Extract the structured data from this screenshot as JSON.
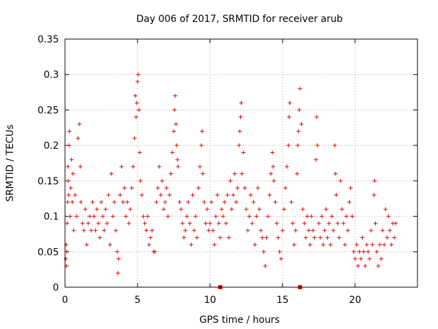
{
  "chart_data": {
    "type": "scatter",
    "title": "Day 006 of 2017, SRMTID for receiver arub",
    "xlabel": "GPS time / hours",
    "ylabel": "SRMTID / TECUs",
    "xlim": [
      0,
      24.3
    ],
    "ylim": [
      0,
      0.35
    ],
    "xticks": [
      0,
      5,
      10,
      15,
      20
    ],
    "xtick_labels": [
      "0",
      "5",
      "10",
      "15",
      "20"
    ],
    "yticks": [
      0,
      0.05,
      0.1,
      0.15,
      0.2,
      0.25,
      0.3,
      0.35
    ],
    "ytick_labels": [
      "0",
      "0.05",
      "0.1",
      "0.15",
      "0.2",
      "0.25",
      "0.3",
      "0.35"
    ],
    "grid": true,
    "marker_color": "#e00000",
    "series": [
      {
        "name": "SRMTID",
        "marker": "plus",
        "points": [
          [
            0.05,
            0.04
          ],
          [
            0.08,
            0.06
          ],
          [
            0.1,
            0.03
          ],
          [
            0.12,
            0.05
          ],
          [
            0.15,
            0.09
          ],
          [
            0.18,
            0.12
          ],
          [
            0.2,
            0.17
          ],
          [
            0.22,
            0.15
          ],
          [
            0.25,
            0.13
          ],
          [
            0.28,
            0.2
          ],
          [
            0.3,
            0.22
          ],
          [
            0.35,
            0.1
          ],
          [
            0.4,
            0.14
          ],
          [
            0.45,
            0.18
          ],
          [
            0.5,
            0.12
          ],
          [
            0.55,
            0.16
          ],
          [
            0.6,
            0.08
          ],
          [
            0.7,
            0.13
          ],
          [
            0.8,
            0.1
          ],
          [
            0.9,
            0.21
          ],
          [
            1.0,
            0.23
          ],
          [
            1.05,
            0.17
          ],
          [
            1.1,
            0.12
          ],
          [
            1.2,
            0.09
          ],
          [
            1.3,
            0.08
          ],
          [
            1.4,
            0.11
          ],
          [
            1.5,
            0.06
          ],
          [
            1.6,
            0.09
          ],
          [
            1.7,
            0.1
          ],
          [
            1.8,
            0.08
          ],
          [
            1.9,
            0.12
          ],
          [
            2.0,
            0.1
          ],
          [
            2.1,
            0.08
          ],
          [
            2.2,
            0.11
          ],
          [
            2.3,
            0.09
          ],
          [
            2.4,
            0.07
          ],
          [
            2.5,
            0.12
          ],
          [
            2.6,
            0.1
          ],
          [
            2.7,
            0.08
          ],
          [
            2.8,
            0.11
          ],
          [
            2.9,
            0.09
          ],
          [
            3.0,
            0.13
          ],
          [
            3.1,
            0.06
          ],
          [
            3.2,
            0.16
          ],
          [
            3.3,
            0.1
          ],
          [
            3.4,
            0.12
          ],
          [
            3.5,
            0.08
          ],
          [
            3.6,
            0.05
          ],
          [
            3.65,
            0.02
          ],
          [
            3.7,
            0.04
          ],
          [
            3.8,
            0.13
          ],
          [
            3.9,
            0.17
          ],
          [
            4.0,
            0.12
          ],
          [
            4.1,
            0.14
          ],
          [
            4.2,
            0.1
          ],
          [
            4.3,
            0.12
          ],
          [
            4.4,
            0.09
          ],
          [
            4.5,
            0.11
          ],
          [
            4.6,
            0.14
          ],
          [
            4.7,
            0.17
          ],
          [
            4.8,
            0.21
          ],
          [
            4.85,
            0.27
          ],
          [
            4.9,
            0.24
          ],
          [
            4.95,
            0.26
          ],
          [
            5.0,
            0.29
          ],
          [
            5.05,
            0.3
          ],
          [
            5.1,
            0.25
          ],
          [
            5.15,
            0.19
          ],
          [
            5.2,
            0.15
          ],
          [
            5.3,
            0.13
          ],
          [
            5.4,
            0.1
          ],
          [
            5.5,
            0.09
          ],
          [
            5.6,
            0.08
          ],
          [
            5.7,
            0.1
          ],
          [
            5.8,
            0.06
          ],
          [
            5.9,
            0.07
          ],
          [
            6.0,
            0.08
          ],
          [
            6.1,
            0.05
          ],
          [
            6.2,
            0.05
          ],
          [
            6.3,
            0.12
          ],
          [
            6.4,
            0.14
          ],
          [
            6.5,
            0.17
          ],
          [
            6.6,
            0.13
          ],
          [
            6.7,
            0.15
          ],
          [
            6.8,
            0.11
          ],
          [
            6.9,
            0.12
          ],
          [
            7.0,
            0.14
          ],
          [
            7.1,
            0.1
          ],
          [
            7.2,
            0.13
          ],
          [
            7.3,
            0.16
          ],
          [
            7.4,
            0.19
          ],
          [
            7.5,
            0.22
          ],
          [
            7.55,
            0.25
          ],
          [
            7.6,
            0.27
          ],
          [
            7.65,
            0.23
          ],
          [
            7.7,
            0.2
          ],
          [
            7.75,
            0.18
          ],
          [
            7.8,
            0.17
          ],
          [
            7.9,
            0.12
          ],
          [
            8.0,
            0.11
          ],
          [
            8.1,
            0.09
          ],
          [
            8.2,
            0.07
          ],
          [
            8.3,
            0.08
          ],
          [
            8.4,
            0.1
          ],
          [
            8.5,
            0.12
          ],
          [
            8.6,
            0.09
          ],
          [
            8.7,
            0.06
          ],
          [
            8.8,
            0.13
          ],
          [
            8.9,
            0.08
          ],
          [
            9.0,
            0.1
          ],
          [
            9.1,
            0.07
          ],
          [
            9.2,
            0.14
          ],
          [
            9.3,
            0.17
          ],
          [
            9.4,
            0.2
          ],
          [
            9.45,
            0.22
          ],
          [
            9.5,
            0.16
          ],
          [
            9.6,
            0.12
          ],
          [
            9.7,
            0.09
          ],
          [
            9.8,
            0.11
          ],
          [
            9.9,
            0.08
          ],
          [
            10.0,
            0.09
          ],
          [
            10.1,
            0.12
          ],
          [
            10.2,
            0.08
          ],
          [
            10.3,
            0.06
          ],
          [
            10.4,
            0.1
          ],
          [
            10.5,
            0.13
          ],
          [
            10.6,
            0.09
          ],
          [
            10.7,
            0.07
          ],
          [
            10.8,
            0.11
          ],
          [
            10.9,
            0.1
          ],
          [
            11.0,
            0.12
          ],
          [
            11.1,
            0.09
          ],
          [
            11.2,
            0.13
          ],
          [
            11.3,
            0.07
          ],
          [
            11.4,
            0.15
          ],
          [
            11.5,
            0.11
          ],
          [
            11.6,
            0.13
          ],
          [
            11.7,
            0.16
          ],
          [
            11.8,
            0.12
          ],
          [
            11.9,
            0.14
          ],
          [
            12.0,
            0.2
          ],
          [
            12.05,
            0.22
          ],
          [
            12.1,
            0.24
          ],
          [
            12.15,
            0.26
          ],
          [
            12.2,
            0.16
          ],
          [
            12.3,
            0.19
          ],
          [
            12.4,
            0.14
          ],
          [
            12.5,
            0.11
          ],
          [
            12.6,
            0.08
          ],
          [
            12.7,
            0.1
          ],
          [
            12.8,
            0.13
          ],
          [
            12.9,
            0.09
          ],
          [
            13.0,
            0.12
          ],
          [
            13.1,
            0.06
          ],
          [
            13.2,
            0.1
          ],
          [
            13.3,
            0.14
          ],
          [
            13.4,
            0.11
          ],
          [
            13.5,
            0.08
          ],
          [
            13.6,
            0.07
          ],
          [
            13.7,
            0.05
          ],
          [
            13.8,
            0.03
          ],
          [
            13.9,
            0.07
          ],
          [
            14.0,
            0.1
          ],
          [
            14.1,
            0.13
          ],
          [
            14.2,
            0.16
          ],
          [
            14.3,
            0.19
          ],
          [
            14.35,
            0.17
          ],
          [
            14.4,
            0.15
          ],
          [
            14.5,
            0.12
          ],
          [
            14.6,
            0.09
          ],
          [
            14.7,
            0.07
          ],
          [
            14.8,
            0.05
          ],
          [
            14.9,
            0.04
          ],
          [
            15.0,
            0.08
          ],
          [
            15.1,
            0.11
          ],
          [
            15.2,
            0.14
          ],
          [
            15.3,
            0.17
          ],
          [
            15.4,
            0.2
          ],
          [
            15.45,
            0.24
          ],
          [
            15.5,
            0.26
          ],
          [
            15.6,
            0.12
          ],
          [
            15.7,
            0.09
          ],
          [
            15.8,
            0.06
          ],
          [
            15.9,
            0.08
          ],
          [
            16.0,
            0.16
          ],
          [
            16.05,
            0.2
          ],
          [
            16.1,
            0.22
          ],
          [
            16.15,
            0.25
          ],
          [
            16.2,
            0.28
          ],
          [
            16.3,
            0.23
          ],
          [
            16.4,
            0.11
          ],
          [
            16.5,
            0.09
          ],
          [
            16.6,
            0.07
          ],
          [
            16.7,
            0.1
          ],
          [
            16.8,
            0.08
          ],
          [
            16.9,
            0.06
          ],
          [
            17.0,
            0.1
          ],
          [
            17.1,
            0.08
          ],
          [
            17.2,
            0.07
          ],
          [
            17.3,
            0.18
          ],
          [
            17.35,
            0.24
          ],
          [
            17.4,
            0.2
          ],
          [
            17.5,
            0.09
          ],
          [
            17.6,
            0.07
          ],
          [
            17.7,
            0.1
          ],
          [
            17.8,
            0.06
          ],
          [
            17.9,
            0.08
          ],
          [
            18.0,
            0.11
          ],
          [
            18.1,
            0.07
          ],
          [
            18.2,
            0.09
          ],
          [
            18.3,
            0.06
          ],
          [
            18.4,
            0.1
          ],
          [
            18.5,
            0.08
          ],
          [
            18.6,
            0.2
          ],
          [
            18.65,
            0.16
          ],
          [
            18.7,
            0.13
          ],
          [
            18.8,
            0.09
          ],
          [
            18.9,
            0.07
          ],
          [
            19.0,
            0.15
          ],
          [
            19.1,
            0.11
          ],
          [
            19.2,
            0.09
          ],
          [
            19.3,
            0.06
          ],
          [
            19.4,
            0.1
          ],
          [
            19.5,
            0.08
          ],
          [
            19.6,
            0.12
          ],
          [
            19.7,
            0.14
          ],
          [
            19.8,
            0.1
          ],
          [
            19.9,
            0.05
          ],
          [
            20.0,
            0.04
          ],
          [
            20.1,
            0.06
          ],
          [
            20.2,
            0.03
          ],
          [
            20.3,
            0.05
          ],
          [
            20.4,
            0.04
          ],
          [
            20.5,
            0.07
          ],
          [
            20.6,
            0.05
          ],
          [
            20.7,
            0.03
          ],
          [
            20.8,
            0.06
          ],
          [
            20.9,
            0.05
          ],
          [
            21.0,
            0.04
          ],
          [
            21.1,
            0.08
          ],
          [
            21.2,
            0.06
          ],
          [
            21.3,
            0.13
          ],
          [
            21.35,
            0.15
          ],
          [
            21.4,
            0.09
          ],
          [
            21.5,
            0.05
          ],
          [
            21.6,
            0.03
          ],
          [
            21.7,
            0.06
          ],
          [
            21.8,
            0.04
          ],
          [
            21.9,
            0.08
          ],
          [
            22.0,
            0.06
          ],
          [
            22.1,
            0.11
          ],
          [
            22.2,
            0.07
          ],
          [
            22.3,
            0.1
          ],
          [
            22.4,
            0.08
          ],
          [
            22.5,
            0.06
          ],
          [
            22.6,
            0.09
          ],
          [
            22.7,
            0.07
          ],
          [
            22.8,
            0.09
          ]
        ]
      }
    ],
    "gap_markers_x": [
      10.7,
      16.2
    ]
  }
}
